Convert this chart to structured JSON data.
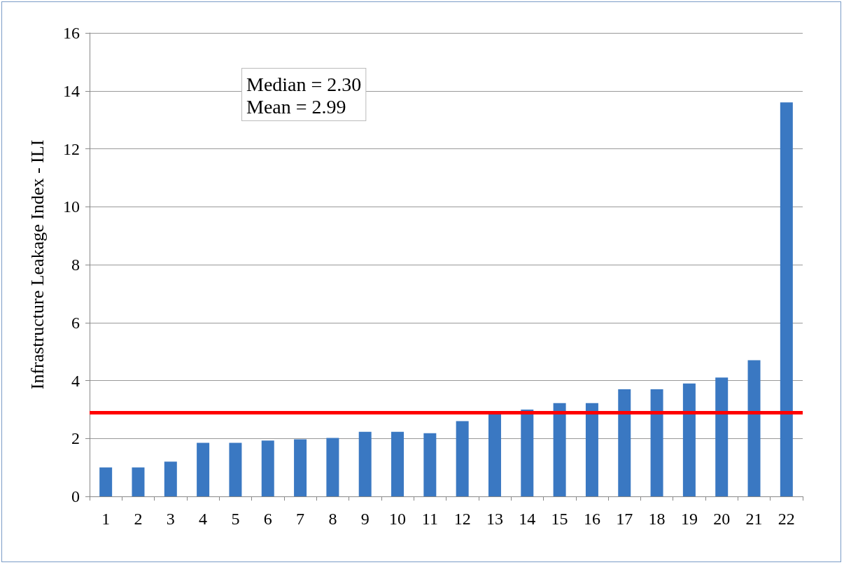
{
  "chart_data": {
    "type": "bar",
    "ylabel": "Infrastructure Leakage Index - ILI",
    "categories": [
      "1",
      "2",
      "3",
      "4",
      "5",
      "6",
      "7",
      "8",
      "9",
      "10",
      "11",
      "12",
      "13",
      "14",
      "15",
      "16",
      "17",
      "18",
      "19",
      "20",
      "21",
      "22"
    ],
    "values": [
      1.0,
      1.0,
      1.2,
      1.85,
      1.85,
      1.93,
      1.97,
      2.02,
      2.23,
      2.23,
      2.18,
      2.6,
      2.9,
      3.0,
      3.22,
      3.22,
      3.7,
      3.7,
      3.9,
      4.1,
      4.7,
      13.6
    ],
    "color": "#3a78c2",
    "ylim": [
      0,
      16
    ],
    "yticks": [
      0,
      2,
      4,
      6,
      8,
      10,
      12,
      14,
      16
    ],
    "grid": "y",
    "ref_lines": [
      {
        "axis": "y",
        "value": 2.9,
        "color": "#ff0000"
      }
    ],
    "annotations": [
      "Median = 2.30\nMean = 2.99"
    ]
  }
}
